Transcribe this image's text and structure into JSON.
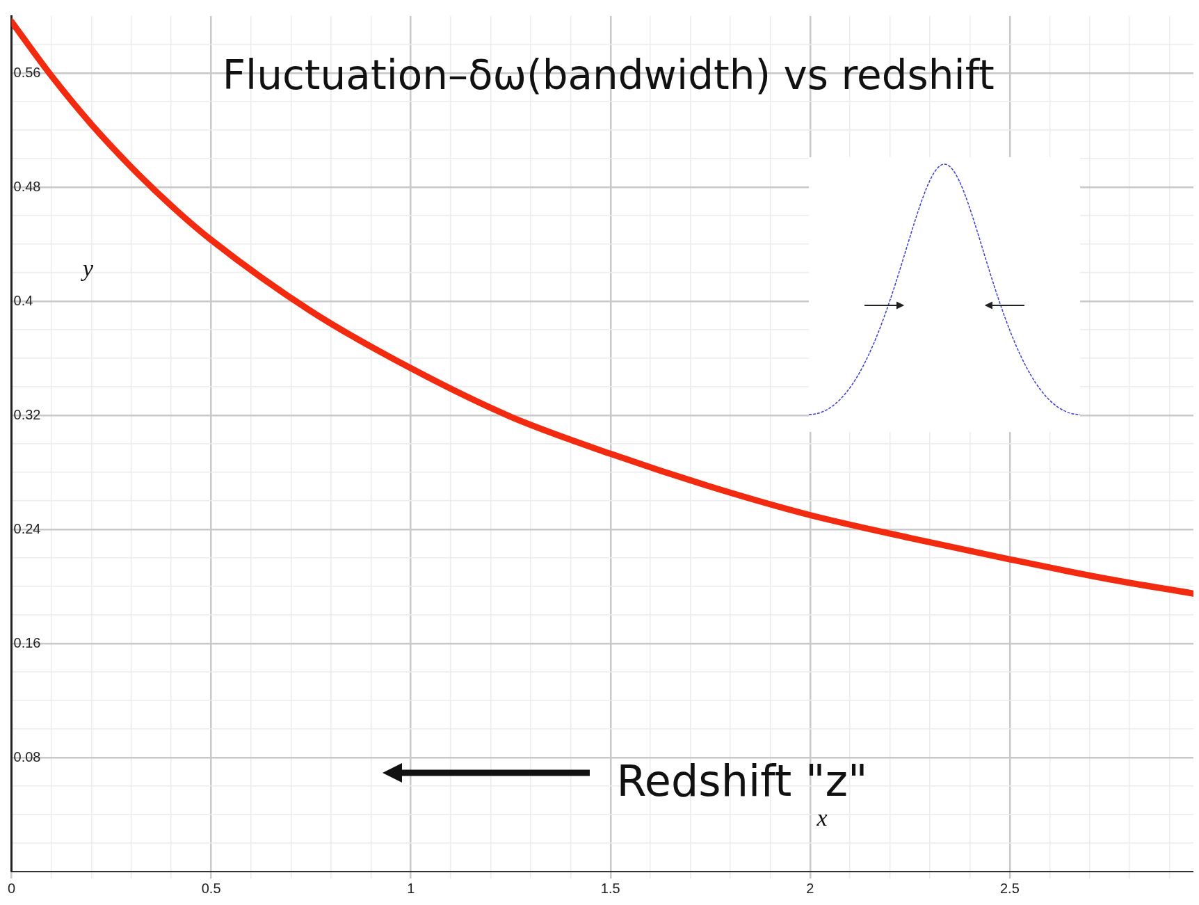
{
  "chart_data": {
    "type": "line",
    "title": "Fluctuation–δω(bandwidth) vs redshift",
    "xlabel": "x",
    "ylabel": "y",
    "annotations": [
      "Redshift \"z\""
    ],
    "x": [
      0,
      0.1,
      0.2,
      0.3,
      0.4,
      0.5,
      0.75,
      1,
      1.25,
      1.5,
      1.75,
      2,
      2.25,
      2.5,
      2.75,
      2.96
    ],
    "series": [
      {
        "color": "#f22a10",
        "values": [
          0.596,
          0.558,
          0.524,
          0.494,
          0.467,
          0.443,
          0.393,
          0.353,
          0.319,
          0.293,
          0.27,
          0.25,
          0.234,
          0.219,
          0.205,
          0.195
        ]
      }
    ],
    "xlim": [
      0,
      2.96
    ],
    "ylim": [
      0,
      0.6
    ],
    "xticks": [
      0,
      {
        "value": 0.1,
        "label": null
      },
      {
        "value": 0.2,
        "label": null
      },
      {
        "value": 0.3,
        "label": null
      },
      {
        "value": 0.4,
        "label": null
      },
      0.5,
      {
        "value": 0.6,
        "label": null
      },
      {
        "value": 0.7,
        "label": null
      },
      {
        "value": 0.8,
        "label": null
      },
      {
        "value": 0.9,
        "label": null
      },
      1,
      {
        "value": 1.1,
        "label": null
      },
      {
        "value": 1.2,
        "label": null
      },
      {
        "value": 1.3,
        "label": null
      },
      {
        "value": 1.4,
        "label": null
      },
      1.5,
      {
        "value": 1.6,
        "label": null
      },
      {
        "value": 1.7,
        "label": null
      },
      {
        "value": 1.8,
        "label": null
      },
      {
        "value": 1.9,
        "label": null
      },
      2,
      {
        "value": 2.1,
        "label": null
      },
      {
        "value": 2.2,
        "label": null
      },
      {
        "value": 2.3,
        "label": null
      },
      {
        "value": 2.4,
        "label": null
      },
      2.5,
      {
        "value": 2.6,
        "label": null
      },
      {
        "value": 2.7,
        "label": null
      },
      {
        "value": 2.8,
        "label": null
      },
      {
        "value": 2.9,
        "label": null
      }
    ],
    "yticks": [
      {
        "value": 0.02,
        "label": null
      },
      {
        "value": 0.04,
        "label": null
      },
      {
        "value": 0.06,
        "label": null
      },
      0.08,
      {
        "value": 0.1,
        "label": null
      },
      {
        "value": 0.12,
        "label": null
      },
      {
        "value": 0.14,
        "label": null
      },
      0.16,
      {
        "value": 0.18,
        "label": null
      },
      {
        "value": 0.2,
        "label": null
      },
      {
        "value": 0.22,
        "label": null
      },
      0.24,
      {
        "value": 0.26,
        "label": null
      },
      {
        "value": 0.28,
        "label": null
      },
      {
        "value": 0.3,
        "label": null
      },
      0.32,
      {
        "value": 0.34,
        "label": null
      },
      {
        "value": 0.36,
        "label": null
      },
      {
        "value": 0.38,
        "label": null
      },
      0.4,
      {
        "value": 0.42,
        "label": null
      },
      {
        "value": 0.44,
        "label": null
      },
      {
        "value": 0.46,
        "label": null
      },
      0.48,
      {
        "value": 0.5,
        "label": null
      },
      {
        "value": 0.52,
        "label": null
      },
      {
        "value": 0.54,
        "label": null
      },
      0.56,
      {
        "value": 0.58,
        "label": null
      }
    ],
    "grid": true,
    "legend": false,
    "marker": "none",
    "line_style": "solid"
  }
}
